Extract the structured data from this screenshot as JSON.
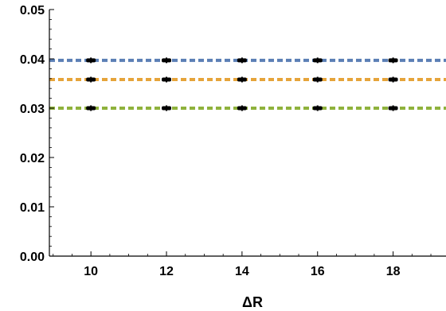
{
  "chart_data": {
    "type": "scatter",
    "title": "",
    "xlabel": "ΔR",
    "ylabel": "",
    "xlim": [
      8.9,
      19.4
    ],
    "ylim": [
      0,
      0.05
    ],
    "grid": false,
    "legend": "none",
    "x_ticks": [
      10,
      12,
      14,
      16,
      18
    ],
    "x_tick_labels": [
      "10",
      "12",
      "14",
      "16",
      "18"
    ],
    "y_ticks": [
      0.0,
      0.01,
      0.02,
      0.03,
      0.04,
      0.05
    ],
    "y_tick_labels": [
      "0.00",
      "0.01",
      "0.02",
      "0.03",
      "0.04",
      "0.05"
    ],
    "reference_lines": [
      {
        "y": 0.0397,
        "color": "#5b7fb5",
        "style": "dashed"
      },
      {
        "y": 0.0358,
        "color": "#e6a43a",
        "style": "dashed"
      },
      {
        "y": 0.03,
        "color": "#8fb23c",
        "style": "dashed"
      }
    ],
    "series": [
      {
        "x": [
          10,
          12,
          14,
          16,
          18
        ],
        "y": [
          0.0397,
          0.0397,
          0.0397,
          0.0397,
          0.0397
        ],
        "color": "#000000"
      },
      {
        "x": [
          10,
          12,
          14,
          16,
          18
        ],
        "y": [
          0.0358,
          0.0358,
          0.0358,
          0.0358,
          0.0358
        ],
        "color": "#000000"
      },
      {
        "x": [
          10,
          12,
          14,
          16,
          18
        ],
        "y": [
          0.03,
          0.03,
          0.03,
          0.03,
          0.03
        ],
        "color": "#000000"
      }
    ]
  }
}
